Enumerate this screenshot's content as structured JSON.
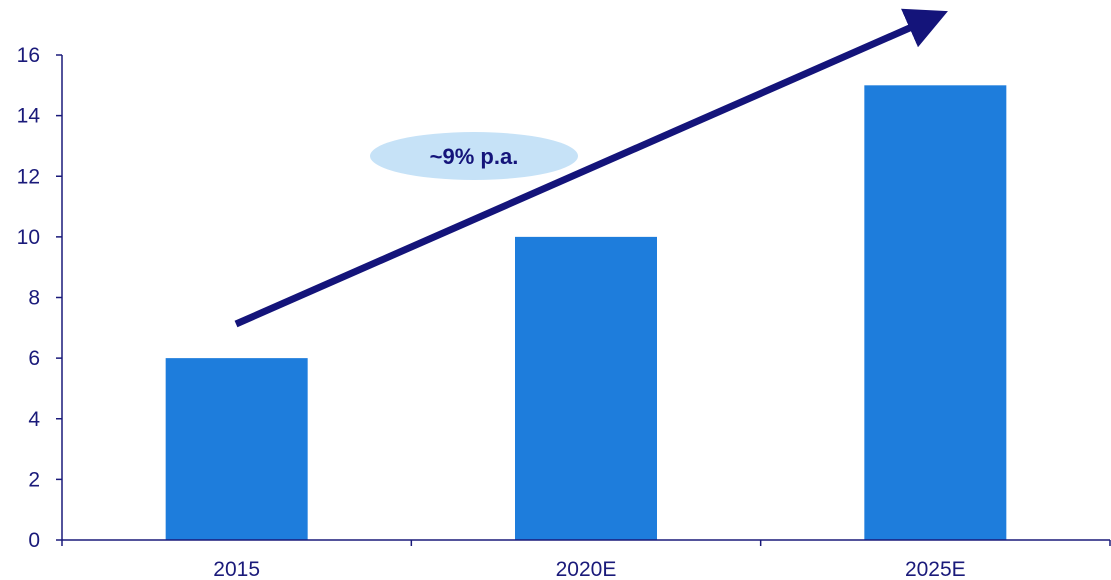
{
  "chart_data": {
    "type": "bar",
    "title": "",
    "xlabel": "",
    "ylabel": "",
    "categories": [
      "2015",
      "2020E",
      "2025E"
    ],
    "values": [
      6,
      10,
      15
    ],
    "ylim": [
      0,
      16
    ],
    "yticks": [
      0,
      2,
      4,
      6,
      8,
      10,
      12,
      14,
      16
    ],
    "grid": false,
    "legend": "none",
    "annotation": {
      "text": "~9% p.a.",
      "shape": "ellipse",
      "arrow": "rising trend arrow from first bar to beyond last bar"
    }
  },
  "colors": {
    "bar": "#1e7ddc",
    "axis": "#1a1a7a",
    "tick_text": "#1a1a7a",
    "arrow": "#14147a",
    "annotation_fill": "#c6e2f7",
    "annotation_text": "#14147a"
  }
}
